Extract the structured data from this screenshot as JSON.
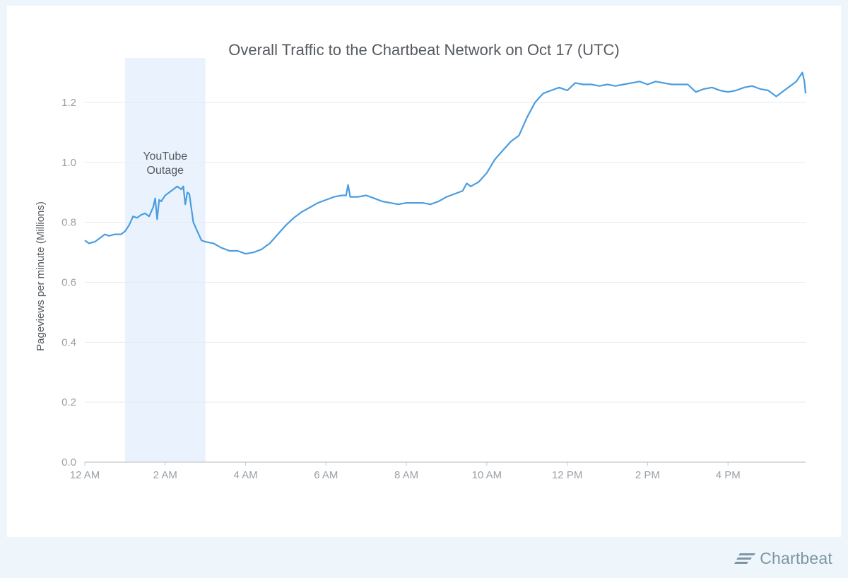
{
  "brand": {
    "name": "Chartbeat",
    "color": "#7d96a5"
  },
  "chart_data": {
    "type": "line",
    "title": "Overall Traffic to the Chartbeat Network on Oct 17 (UTC)",
    "xlabel": "",
    "ylabel": "Pageviews per minute (Millions)",
    "x_unit": "hours since 12 AM UTC",
    "xlim": [
      0,
      17.93
    ],
    "ylim": [
      0,
      1.3
    ],
    "grid": true,
    "legend": "none",
    "line_color": "#4a9de0",
    "x_ticks": [
      {
        "value": 0,
        "label": "12 AM"
      },
      {
        "value": 2,
        "label": "2 AM"
      },
      {
        "value": 4,
        "label": "4 AM"
      },
      {
        "value": 6,
        "label": "6 AM"
      },
      {
        "value": 8,
        "label": "8 AM"
      },
      {
        "value": 10,
        "label": "10 AM"
      },
      {
        "value": 12,
        "label": "12 PM"
      },
      {
        "value": 14,
        "label": "2 PM"
      },
      {
        "value": 16,
        "label": "4 PM"
      }
    ],
    "y_ticks": [
      {
        "value": 0.0,
        "label": "0.0"
      },
      {
        "value": 0.2,
        "label": "0.2"
      },
      {
        "value": 0.4,
        "label": "0.4"
      },
      {
        "value": 0.6,
        "label": "0.6"
      },
      {
        "value": 0.8,
        "label": "0.8"
      },
      {
        "value": 1.0,
        "label": "1.0"
      },
      {
        "value": 1.2,
        "label": "1.2"
      }
    ],
    "highlight": {
      "x_start": 1.0,
      "x_end": 3.0,
      "label_lines": [
        "YouTube",
        "Outage"
      ],
      "color": "#eaf3fd"
    },
    "series": [
      {
        "name": "",
        "x": [
          0,
          0.1,
          0.25,
          0.4,
          0.5,
          0.6,
          0.75,
          0.9,
          1.0,
          1.1,
          1.2,
          1.3,
          1.4,
          1.5,
          1.6,
          1.7,
          1.75,
          1.8,
          1.85,
          1.9,
          2.0,
          2.1,
          2.2,
          2.3,
          2.4,
          2.45,
          2.5,
          2.55,
          2.6,
          2.7,
          2.8,
          2.9,
          3.0,
          3.2,
          3.4,
          3.6,
          3.8,
          4.0,
          4.2,
          4.4,
          4.6,
          4.8,
          5.0,
          5.2,
          5.4,
          5.6,
          5.8,
          6.0,
          6.2,
          6.4,
          6.5,
          6.55,
          6.6,
          6.8,
          7.0,
          7.2,
          7.4,
          7.6,
          7.8,
          8.0,
          8.2,
          8.4,
          8.6,
          8.8,
          9.0,
          9.2,
          9.4,
          9.5,
          9.6,
          9.8,
          10.0,
          10.2,
          10.4,
          10.6,
          10.8,
          11.0,
          11.2,
          11.4,
          11.6,
          11.8,
          12.0,
          12.2,
          12.4,
          12.6,
          12.8,
          13.0,
          13.2,
          13.4,
          13.6,
          13.8,
          14.0,
          14.2,
          14.4,
          14.6,
          14.8,
          15.0,
          15.2,
          15.4,
          15.6,
          15.8,
          16.0,
          16.2,
          16.4,
          16.6,
          16.8,
          17.0,
          17.2,
          17.4,
          17.6,
          17.7,
          17.8,
          17.85,
          17.9,
          17.93
        ],
        "values": [
          0.74,
          0.73,
          0.735,
          0.75,
          0.76,
          0.755,
          0.76,
          0.76,
          0.77,
          0.79,
          0.82,
          0.815,
          0.825,
          0.83,
          0.82,
          0.85,
          0.88,
          0.81,
          0.875,
          0.87,
          0.89,
          0.9,
          0.91,
          0.92,
          0.91,
          0.92,
          0.86,
          0.9,
          0.895,
          0.8,
          0.77,
          0.74,
          0.735,
          0.73,
          0.715,
          0.705,
          0.705,
          0.695,
          0.7,
          0.71,
          0.73,
          0.76,
          0.79,
          0.815,
          0.835,
          0.85,
          0.865,
          0.875,
          0.885,
          0.89,
          0.89,
          0.925,
          0.885,
          0.885,
          0.89,
          0.88,
          0.87,
          0.865,
          0.86,
          0.865,
          0.865,
          0.865,
          0.86,
          0.87,
          0.885,
          0.895,
          0.905,
          0.93,
          0.92,
          0.935,
          0.965,
          1.01,
          1.04,
          1.07,
          1.09,
          1.15,
          1.2,
          1.23,
          1.24,
          1.25,
          1.24,
          1.265,
          1.26,
          1.26,
          1.255,
          1.26,
          1.255,
          1.26,
          1.265,
          1.27,
          1.26,
          1.27,
          1.265,
          1.26,
          1.26,
          1.26,
          1.235,
          1.245,
          1.25,
          1.24,
          1.235,
          1.24,
          1.25,
          1.255,
          1.245,
          1.24,
          1.22,
          1.24,
          1.26,
          1.27,
          1.29,
          1.3,
          1.27,
          1.23
        ]
      }
    ]
  }
}
